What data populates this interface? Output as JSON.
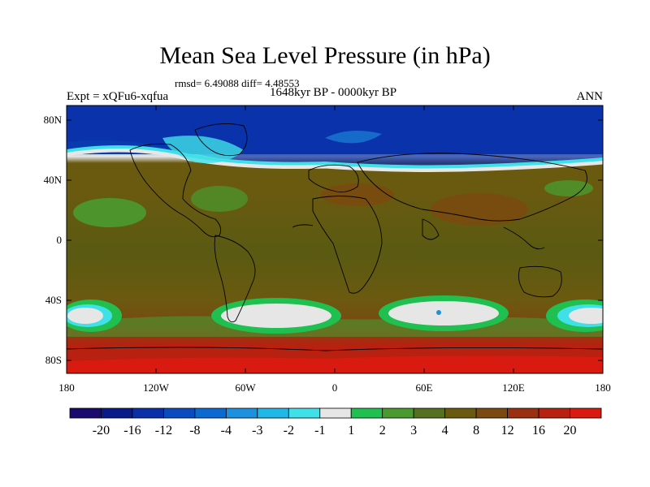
{
  "title": "Mean Sea Level Pressure (in hPa)",
  "stats": "rmsd= 6.49088 diff= 4.48553",
  "period": "1648kyr BP - 0000kyr BP",
  "experiment": "Expt = xQFu6-xqfua",
  "season": "ANN",
  "lat_labels": [
    "80N",
    "40N",
    "0",
    "40S",
    "80S"
  ],
  "lon_labels": [
    "180",
    "120W",
    "60W",
    "0",
    "60E",
    "120E",
    "180"
  ],
  "colorbar": {
    "colors": [
      "#1a0a70",
      "#0a1a8a",
      "#0a2fa8",
      "#0a4cc0",
      "#0a6ad2",
      "#1e90e0",
      "#20b8e8",
      "#40e0e8",
      "#e6e6e6",
      "#20c050",
      "#4a9a30",
      "#557020",
      "#6a5a10",
      "#7a4a10",
      "#9a3010",
      "#b82010",
      "#d81a10"
    ],
    "labels": [
      "-20",
      "-16",
      "-12",
      "-8",
      "-4",
      "-3",
      "-2",
      "-1",
      "1",
      "2",
      "3",
      "4",
      "8",
      "12",
      "16",
      "20"
    ]
  }
}
